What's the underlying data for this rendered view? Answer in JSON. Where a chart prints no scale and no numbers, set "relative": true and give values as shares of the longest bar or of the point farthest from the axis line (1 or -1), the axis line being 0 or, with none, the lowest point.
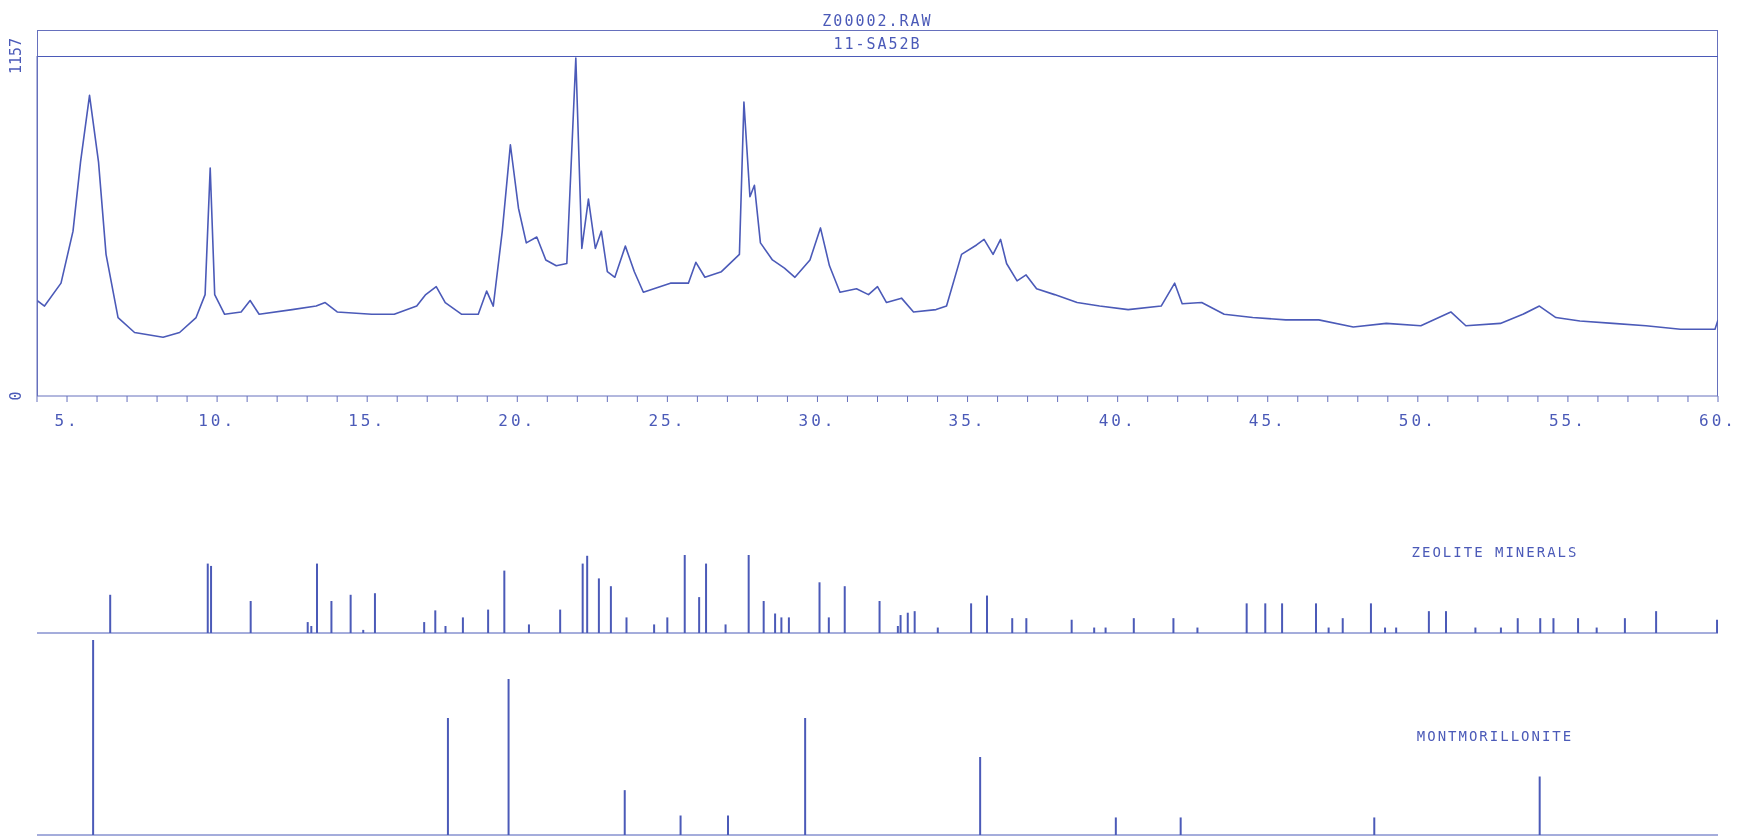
{
  "chart_data": [
    {
      "type": "line",
      "title": "Z00002.RAW",
      "subtitle": "11-SA52B",
      "color": "#4b5ab8",
      "xlim": [
        4,
        60
      ],
      "ylim": [
        0,
        1157
      ],
      "yticks": [
        0,
        1157
      ],
      "xticks": [
        {
          "value": 4,
          "label": null
        },
        {
          "value": 5,
          "label": "5."
        },
        {
          "value": 6,
          "label": null
        },
        {
          "value": 7,
          "label": null
        },
        {
          "value": 8,
          "label": null
        },
        {
          "value": 9,
          "label": null
        },
        {
          "value": 10,
          "label": "10."
        },
        {
          "value": 11,
          "label": null
        },
        {
          "value": 12,
          "label": null
        },
        {
          "value": 13,
          "label": null
        },
        {
          "value": 14,
          "label": null
        },
        {
          "value": 15,
          "label": "15."
        },
        {
          "value": 16,
          "label": null
        },
        {
          "value": 17,
          "label": null
        },
        {
          "value": 18,
          "label": null
        },
        {
          "value": 19,
          "label": null
        },
        {
          "value": 20,
          "label": "20."
        },
        {
          "value": 21,
          "label": null
        },
        {
          "value": 22,
          "label": null
        },
        {
          "value": 23,
          "label": null
        },
        {
          "value": 24,
          "label": null
        },
        {
          "value": 25,
          "label": "25."
        },
        {
          "value": 26,
          "label": null
        },
        {
          "value": 27,
          "label": null
        },
        {
          "value": 28,
          "label": null
        },
        {
          "value": 29,
          "label": null
        },
        {
          "value": 30,
          "label": "30."
        },
        {
          "value": 31,
          "label": null
        },
        {
          "value": 32,
          "label": null
        },
        {
          "value": 33,
          "label": null
        },
        {
          "value": 34,
          "label": null
        },
        {
          "value": 35,
          "label": "35."
        },
        {
          "value": 36,
          "label": null
        },
        {
          "value": 37,
          "label": null
        },
        {
          "value": 38,
          "label": null
        },
        {
          "value": 39,
          "label": null
        },
        {
          "value": 40,
          "label": "40."
        },
        {
          "value": 41,
          "label": null
        },
        {
          "value": 42,
          "label": null
        },
        {
          "value": 43,
          "label": null
        },
        {
          "value": 44,
          "label": null
        },
        {
          "value": 45,
          "label": "45."
        },
        {
          "value": 46,
          "label": null
        },
        {
          "value": 47,
          "label": null
        },
        {
          "value": 48,
          "label": null
        },
        {
          "value": 49,
          "label": null
        },
        {
          "value": 50,
          "label": "50."
        },
        {
          "value": 51,
          "label": null
        },
        {
          "value": 52,
          "label": null
        },
        {
          "value": 53,
          "label": null
        },
        {
          "value": 54,
          "label": null
        },
        {
          "value": 55,
          "label": "55."
        },
        {
          "value": 56,
          "label": null
        },
        {
          "value": 57,
          "label": null
        },
        {
          "value": 58,
          "label": null
        },
        {
          "value": 59,
          "label": null
        },
        {
          "value": 60,
          "label": "60."
        }
      ],
      "x": [
        4,
        4.25,
        4.8,
        5.2,
        5.45,
        5.75,
        6.05,
        6.3,
        6.7,
        7.25,
        8.2,
        8.75,
        9.3,
        9.6,
        9.77,
        9.92,
        10.25,
        10.8,
        11.1,
        11.4,
        12.5,
        13.3,
        13.6,
        14.0,
        15.15,
        15.9,
        16.65,
        16.95,
        17.3,
        17.6,
        18.15,
        18.7,
        18.98,
        19.2,
        19.5,
        19.77,
        20.04,
        20.3,
        20.65,
        20.95,
        21.3,
        21.65,
        21.95,
        22.15,
        22.37,
        22.6,
        22.8,
        23.0,
        23.25,
        23.6,
        23.9,
        24.2,
        24.75,
        25.1,
        25.7,
        25.95,
        26.25,
        26.8,
        27.4,
        27.55,
        27.75,
        27.9,
        28.1,
        28.5,
        28.9,
        29.25,
        29.75,
        30.1,
        30.4,
        30.75,
        31.3,
        31.7,
        32.0,
        32.3,
        32.8,
        33.2,
        33.95,
        34.3,
        34.8,
        35.3,
        35.55,
        35.85,
        36.1,
        36.3,
        36.65,
        36.95,
        37.3,
        37.9,
        38.65,
        39.4,
        40.35,
        41.45,
        41.9,
        42.15,
        42.8,
        43.55,
        44.5,
        45.6,
        46.7,
        47.85,
        48.95,
        50.1,
        51.1,
        51.6,
        52.75,
        53.5,
        54.05,
        54.6,
        55.4,
        56.5,
        57.6,
        58.75,
        59.9,
        60
      ],
      "values": [
        325,
        306,
        384,
        561,
        796,
        1023,
        796,
        482,
        267,
        216,
        200,
        216,
        267,
        345,
        776,
        345,
        278,
        286,
        325,
        278,
        294,
        306,
        318,
        286,
        278,
        278,
        306,
        345,
        372,
        318,
        278,
        278,
        357,
        306,
        561,
        855,
        639,
        521,
        541,
        463,
        443,
        451,
        1150,
        502,
        670,
        502,
        561,
        423,
        404,
        510,
        423,
        353,
        372,
        384,
        384,
        455,
        404,
        423,
        482,
        1000,
        678,
        717,
        521,
        463,
        435,
        404,
        463,
        572,
        443,
        353,
        365,
        345,
        372,
        318,
        333,
        286,
        294,
        306,
        482,
        514,
        533,
        482,
        533,
        451,
        392,
        412,
        365,
        345,
        318,
        306,
        294,
        306,
        384,
        314,
        318,
        278,
        267,
        259,
        259,
        235,
        247,
        239,
        286,
        239,
        247,
        278,
        306,
        267,
        255,
        247,
        239,
        227,
        227,
        259
      ]
    },
    {
      "type": "bar",
      "relative": true,
      "xlim": [
        4,
        60
      ],
      "tick_labels": false,
      "x": [
        6.45,
        9.7,
        9.81,
        11.13,
        13.03,
        13.15,
        13.34,
        13.82,
        14.46,
        14.88,
        15.27,
        16.91,
        17.28,
        17.62,
        18.2,
        19.04,
        19.58,
        20.4,
        21.44,
        22.19,
        22.34,
        22.73,
        23.13,
        23.65,
        24.57,
        25.01,
        25.59,
        26.07,
        26.3,
        26.95,
        27.72,
        28.22,
        28.6,
        28.81,
        29.06,
        30.08,
        30.39,
        30.92,
        32.08,
        32.69,
        32.78,
        33.02,
        33.25,
        34.02,
        35.13,
        35.66,
        36.5,
        36.97,
        38.48,
        39.23,
        39.61,
        40.55,
        41.87,
        42.67,
        44.31,
        44.93,
        45.49,
        46.62,
        47.04,
        47.51,
        48.45,
        48.92,
        49.29,
        50.38,
        50.95,
        51.93,
        52.78,
        53.34,
        54.09,
        54.53,
        55.35,
        55.97,
        56.91,
        57.95,
        59.98
      ],
      "series": [
        {
          "name": "ZEOLITE MINERALS",
          "color": "#4b5ab8",
          "values": [
            0.49,
            0.89,
            0.86,
            0.41,
            0.14,
            0.09,
            0.89,
            0.41,
            0.49,
            0.04,
            0.51,
            0.14,
            0.29,
            0.09,
            0.2,
            0.3,
            0.8,
            0.11,
            0.3,
            0.89,
            0.99,
            0.7,
            0.6,
            0.2,
            0.11,
            0.2,
            1,
            0.46,
            0.89,
            0.11,
            1,
            0.41,
            0.25,
            0.2,
            0.2,
            0.65,
            0.2,
            0.6,
            0.41,
            0.09,
            0.23,
            0.26,
            0.28,
            0.07,
            0.38,
            0.48,
            0.19,
            0.19,
            0.17,
            0.07,
            0.07,
            0.19,
            0.19,
            0.07,
            0.38,
            0.38,
            0.38,
            0.38,
            0.07,
            0.19,
            0.38,
            0.07,
            0.07,
            0.28,
            0.28,
            0.07,
            0.07,
            0.19,
            0.19,
            0.19,
            0.19,
            0.07,
            0.19,
            0.28,
            0.17
          ]
        }
      ]
    },
    {
      "type": "bar",
      "relative": true,
      "xlim": [
        4,
        60
      ],
      "tick_labels": false,
      "x": [
        5.86,
        17.68,
        19.7,
        23.57,
        25.43,
        27.01,
        29.58,
        35.41,
        39.93,
        42.09,
        48.54,
        54.05
      ],
      "series": [
        {
          "name": "MONTMORILLONITE",
          "color": "#4b5ab8",
          "values": [
            1,
            0.6,
            0.8,
            0.23,
            0.1,
            0.1,
            0.6,
            0.4,
            0.09,
            0.09,
            0.09,
            0.3
          ]
        }
      ]
    }
  ]
}
